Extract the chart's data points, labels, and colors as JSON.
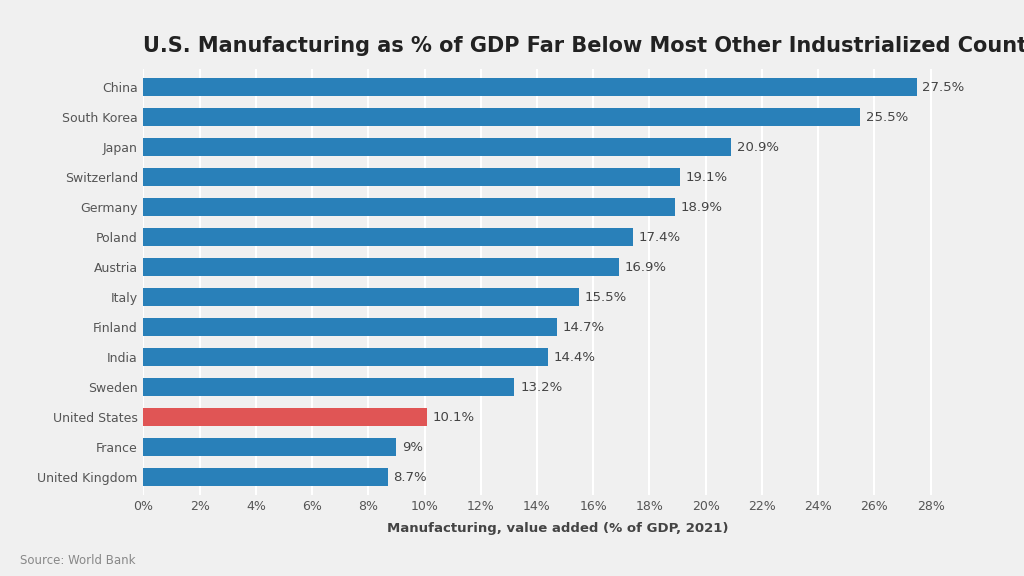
{
  "title": "U.S. Manufacturing as % of GDP Far Below Most Other Industrialized Countries",
  "xlabel": "Manufacturing, value added (% of GDP, 2021)",
  "source": "Source: World Bank",
  "countries": [
    "China",
    "South Korea",
    "Japan",
    "Switzerland",
    "Germany",
    "Poland",
    "Austria",
    "Italy",
    "Finland",
    "India",
    "Sweden",
    "United States",
    "France",
    "United Kingdom"
  ],
  "values": [
    27.5,
    25.5,
    20.9,
    19.1,
    18.9,
    17.4,
    16.9,
    15.5,
    14.7,
    14.4,
    13.2,
    10.1,
    9.0,
    8.7
  ],
  "labels": [
    "27.5%",
    "25.5%",
    "20.9%",
    "19.1%",
    "18.9%",
    "17.4%",
    "16.9%",
    "15.5%",
    "14.7%",
    "14.4%",
    "13.2%",
    "10.1%",
    "9%",
    "8.7%"
  ],
  "bar_colors": [
    "#2980b9",
    "#2980b9",
    "#2980b9",
    "#2980b9",
    "#2980b9",
    "#2980b9",
    "#2980b9",
    "#2980b9",
    "#2980b9",
    "#2980b9",
    "#2980b9",
    "#e05555",
    "#2980b9",
    "#2980b9"
  ],
  "background_color": "#f0f0f0",
  "xlim": [
    0,
    29.5
  ],
  "xticks": [
    0,
    2,
    4,
    6,
    8,
    10,
    12,
    14,
    16,
    18,
    20,
    22,
    24,
    26,
    28
  ],
  "xtick_labels": [
    "0%",
    "2%",
    "4%",
    "6%",
    "8%",
    "10%",
    "12%",
    "14%",
    "16%",
    "18%",
    "20%",
    "22%",
    "24%",
    "26%",
    "28%"
  ],
  "title_fontsize": 15,
  "label_fontsize": 9.5,
  "tick_fontsize": 9,
  "source_fontsize": 8.5,
  "bar_height": 0.6
}
